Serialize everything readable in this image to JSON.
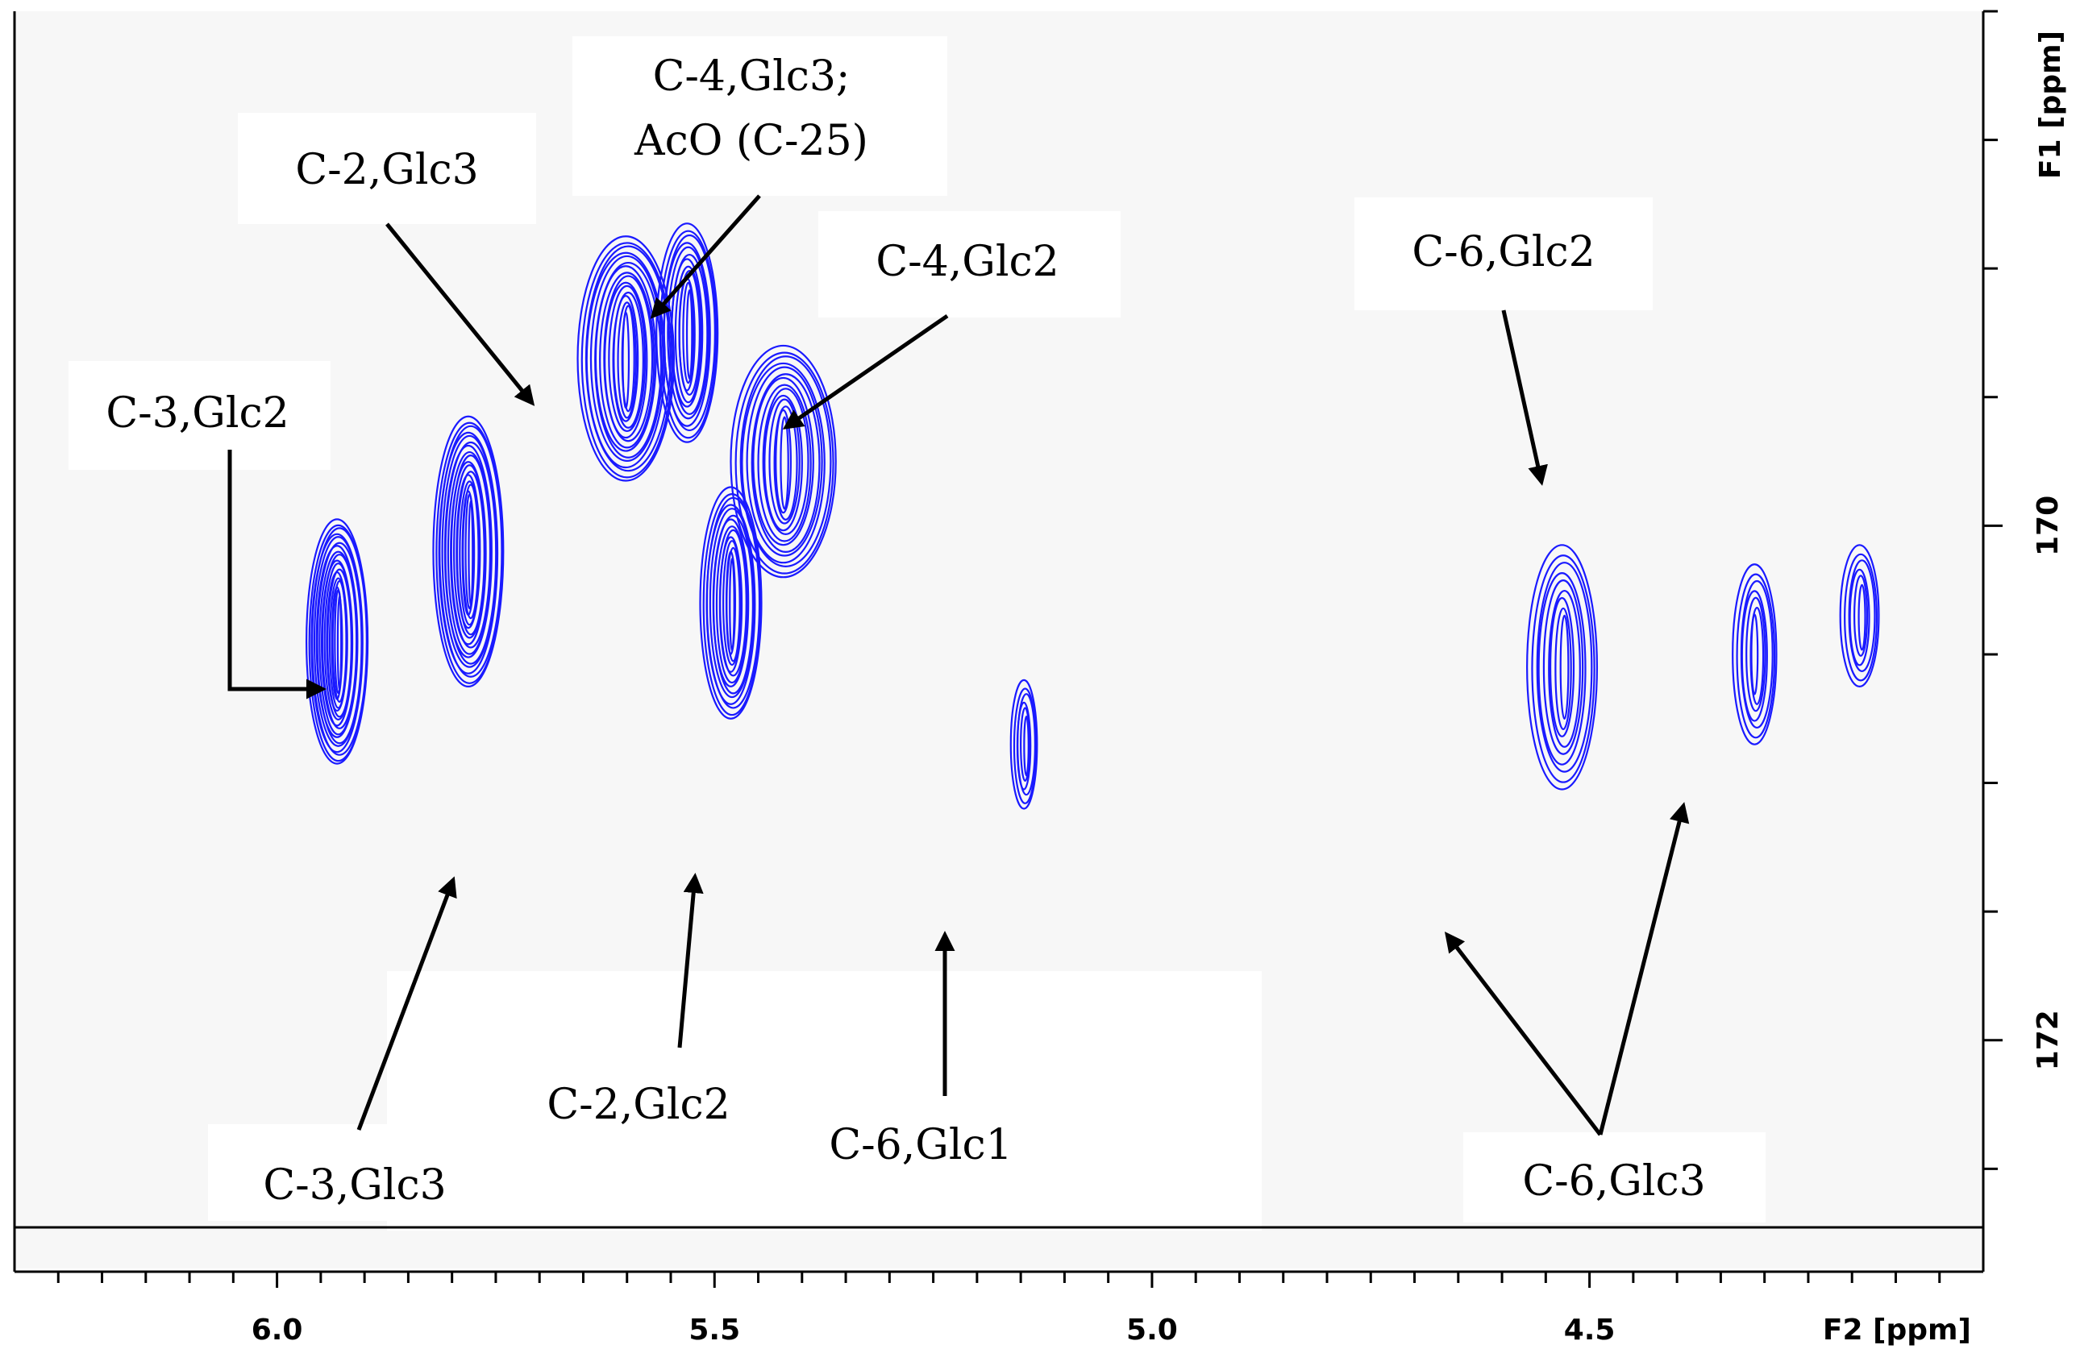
{
  "chart_data": {
    "type": "contour",
    "xlabel": "F2 [ppm]",
    "ylabel": "F1 [ppm]",
    "x_axis": {
      "direction": "descending",
      "major_ticks": [
        6.0,
        5.5,
        5.0,
        4.5
      ],
      "minor_step": 0.05,
      "range": [
        6.3,
        4.05
      ]
    },
    "y_axis": {
      "direction": "ascending_downward",
      "major_ticks": [
        170,
        172
      ],
      "minor_step": 0.5,
      "range": [
        168.0,
        172.9
      ]
    },
    "colors": {
      "contour": "#1a1aff",
      "panel": "#f7f7f7",
      "axis": "#000000",
      "label_box": "#ffffff"
    },
    "peaks": [
      {
        "name": "C-3,Glc2 peak",
        "x": 5.93,
        "y": 170.45,
        "width": 0.035,
        "height": 0.95,
        "levels": 18
      },
      {
        "name": "C-3,Glc3 peak",
        "x": 5.78,
        "y": 170.1,
        "width": 0.04,
        "height": 1.05,
        "levels": 18
      },
      {
        "name": "C-2,Glc3 peak",
        "x": 5.6,
        "y": 169.35,
        "width": 0.055,
        "height": 0.95,
        "levels": 16
      },
      {
        "name": "C-4,Glc3 peak",
        "x": 5.53,
        "y": 169.25,
        "width": 0.035,
        "height": 0.85,
        "levels": 12
      },
      {
        "name": "C-2,Glc2 peak",
        "x": 5.48,
        "y": 170.3,
        "width": 0.035,
        "height": 0.9,
        "levels": 14
      },
      {
        "name": "C-4,Glc2 peak",
        "x": 5.42,
        "y": 169.75,
        "width": 0.06,
        "height": 0.9,
        "levels": 14
      },
      {
        "name": "C-6,Glc1 peak",
        "x": 5.145,
        "y": 170.85,
        "width": 0.015,
        "height": 0.5,
        "levels": 6
      },
      {
        "name": "C-6,Glc3 peak a",
        "x": 4.53,
        "y": 170.55,
        "width": 0.04,
        "height": 0.95,
        "levels": 9
      },
      {
        "name": "C-6,Glc2 peak",
        "x": 4.31,
        "y": 170.5,
        "width": 0.025,
        "height": 0.7,
        "levels": 7
      },
      {
        "name": "C-6,Glc3 peak b",
        "x": 4.19,
        "y": 170.35,
        "width": 0.022,
        "height": 0.55,
        "levels": 6
      }
    ],
    "annotations": [
      {
        "key": "c3_glc2",
        "lines": [
          "C-3,Glc2"
        ]
      },
      {
        "key": "c2_glc3",
        "lines": [
          "C-2,Glc3"
        ]
      },
      {
        "key": "c4_glc3",
        "lines": [
          "C-4,Glc3;",
          "AcO (C-25)"
        ]
      },
      {
        "key": "c4_glc2",
        "lines": [
          "C-4,Glc2"
        ]
      },
      {
        "key": "c3_glc3",
        "lines": [
          "C-3,Glc3"
        ]
      },
      {
        "key": "c2_glc2",
        "lines": [
          "C-2,Glc2"
        ]
      },
      {
        "key": "c6_glc1",
        "lines": [
          "C-6,Glc1"
        ]
      },
      {
        "key": "c6_glc2",
        "lines": [
          "C-6,Glc2"
        ]
      },
      {
        "key": "c6_glc3",
        "lines": [
          "C-6,Glc3"
        ]
      }
    ]
  }
}
